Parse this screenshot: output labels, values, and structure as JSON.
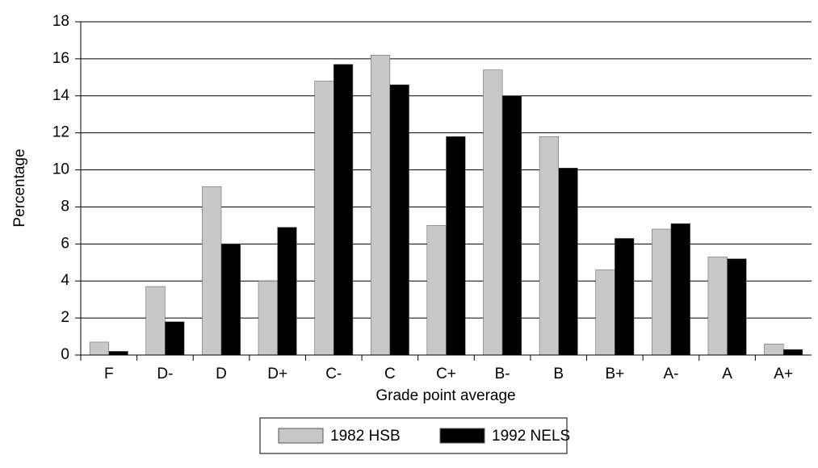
{
  "chart_data": {
    "type": "bar",
    "xlabel": "Grade point average",
    "ylabel": "Percentage",
    "categories": [
      "F",
      "D-",
      "D",
      "D+",
      "C-",
      "C",
      "C+",
      "B-",
      "B",
      "B+",
      "A-",
      "A",
      "A+"
    ],
    "series": [
      {
        "name": "1982 HSB",
        "color": "#c8c8c8",
        "values": [
          0.7,
          3.7,
          9.1,
          4.0,
          14.8,
          16.2,
          7.0,
          15.4,
          11.8,
          4.6,
          6.8,
          5.3,
          0.6
        ]
      },
      {
        "name": "1992 NELS",
        "color": "#000000",
        "values": [
          0.2,
          1.8,
          6.0,
          6.9,
          15.7,
          14.6,
          11.8,
          14.0,
          10.1,
          6.3,
          7.1,
          5.2,
          0.3
        ]
      }
    ],
    "ylim": [
      0,
      18
    ],
    "yticks": [
      0,
      2,
      4,
      6,
      8,
      10,
      12,
      14,
      16,
      18
    ],
    "grid": true,
    "legend": "bottom"
  }
}
